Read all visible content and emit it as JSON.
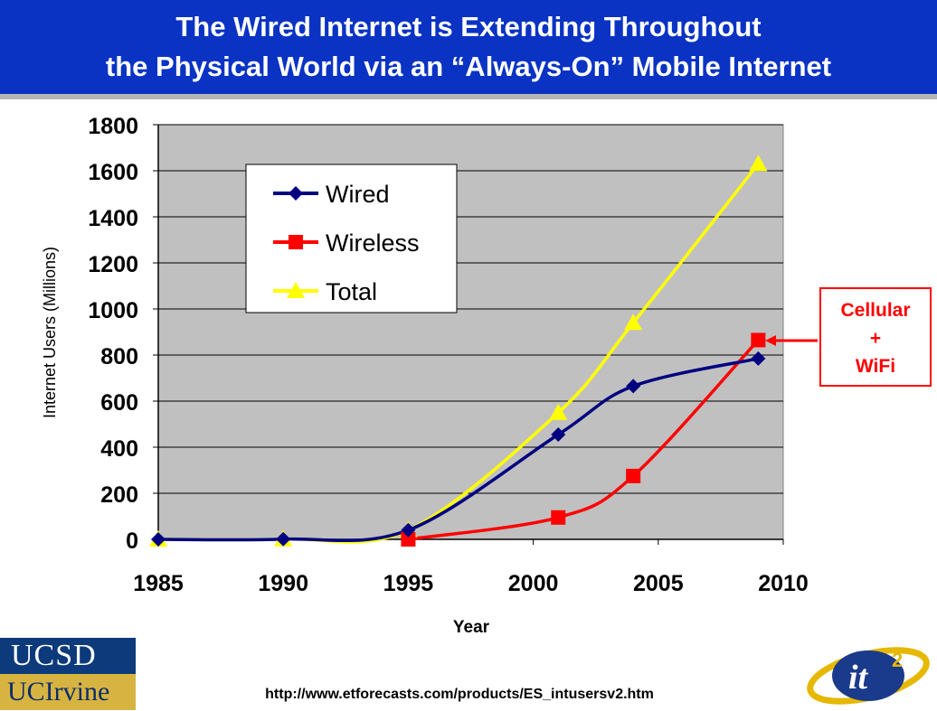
{
  "header": {
    "title_line1": "The Wired Internet is Extending Throughout",
    "title_line2": "the Physical World via an “Always-On” Mobile Internet"
  },
  "callout": {
    "line1": "Cellular",
    "line2": "+",
    "line3": "WiFi"
  },
  "footer": {
    "source_url": "http://www.etforecasts.com/products/ES_intusersv2.htm",
    "logo_ucsd": "UCSD",
    "logo_uci": "UCIrvine",
    "logo_it2": "it²"
  },
  "colors": {
    "title_bg": "#0a33c4",
    "plot_bg": "#c0c0c0",
    "wired": "#000080",
    "wireless": "#ff0000",
    "total": "#ffff00"
  },
  "chart_data": {
    "type": "line",
    "title": "",
    "xlabel": "Year",
    "ylabel": "Internet Users (Millions)",
    "xlim": [
      1985,
      2010
    ],
    "ylim": [
      0,
      1800
    ],
    "xticks": [
      1985,
      1990,
      1995,
      2000,
      2005,
      2010
    ],
    "yticks": [
      0,
      200,
      400,
      600,
      800,
      1000,
      1200,
      1400,
      1600,
      1800
    ],
    "grid": "horizontal",
    "legend_position": "top-left",
    "series": [
      {
        "name": "Wired",
        "marker": "diamond",
        "color": "#000080",
        "x": [
          1985,
          1990,
          1995,
          2001,
          2004,
          2009
        ],
        "y": [
          0,
          1,
          40,
          455,
          665,
          785
        ]
      },
      {
        "name": "Wireless",
        "marker": "square",
        "color": "#ff0000",
        "x": [
          1995,
          2001,
          2004,
          2009
        ],
        "y": [
          0,
          95,
          275,
          865
        ]
      },
      {
        "name": "Total",
        "marker": "triangle",
        "color": "#ffff00",
        "x": [
          1985,
          1990,
          1995,
          2001,
          2004,
          2009
        ],
        "y": [
          0,
          1,
          40,
          550,
          940,
          1630
        ]
      }
    ]
  }
}
